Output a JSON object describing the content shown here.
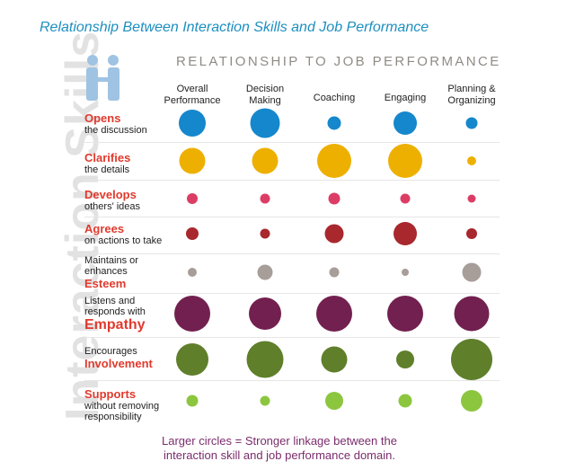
{
  "title": "Relationship Between Interaction Skills and Job Performance",
  "side_title": "Interaction Skills",
  "header": "RELATIONSHIP TO JOB PERFORMANCE",
  "caption": [
    "Larger circles = Stronger linkage between the",
    "interaction skill and job performance domain."
  ],
  "chart_data": {
    "type": "bubble-matrix",
    "columns": [
      [
        "Overall",
        "Performance"
      ],
      [
        "Decision",
        "Making"
      ],
      [
        "Coaching"
      ],
      [
        "Engaging"
      ],
      [
        "Planning &",
        "Organizing"
      ]
    ],
    "rows": [
      {
        "label": [
          {
            "t": "Opens",
            "s": "big"
          },
          {
            "t": "the discussion",
            "s": ""
          }
        ],
        "color": "#1587cc",
        "sizes": [
          3,
          3.3,
          1.5,
          2.6,
          1.3
        ]
      },
      {
        "label": [
          {
            "t": "Clarifies",
            "s": "big"
          },
          {
            "t": "the details",
            "s": ""
          }
        ],
        "color": "#edb000",
        "sizes": [
          2.9,
          2.9,
          3.8,
          3.8,
          1
        ]
      },
      {
        "label": [
          {
            "t": "Develops",
            "s": "big"
          },
          {
            "t": "others' ideas",
            "s": ""
          }
        ],
        "color": "#dc3d65",
        "sizes": [
          1.2,
          1.1,
          1.3,
          1.1,
          0.9
        ]
      },
      {
        "label": [
          {
            "t": "Agrees",
            "s": "big"
          },
          {
            "t": "on actions to take",
            "s": ""
          }
        ],
        "color": "#a8282d",
        "sizes": [
          1.4,
          1.1,
          2.1,
          2.6,
          1.2
        ]
      },
      {
        "label": [
          {
            "t": "Maintains or",
            "s": ""
          },
          {
            "t": "enhances",
            "s": ""
          },
          {
            "t": "Esteem",
            "s": "big"
          }
        ],
        "color": "#a79d99",
        "sizes": [
          1,
          1.7,
          1.1,
          0.8,
          2.1
        ]
      },
      {
        "label": [
          {
            "t": "Listens and",
            "s": ""
          },
          {
            "t": "responds with",
            "s": ""
          },
          {
            "t": "Empathy",
            "s": "xl"
          }
        ],
        "color": "#72204f",
        "sizes": [
          4,
          3.6,
          4,
          4,
          3.9
        ]
      },
      {
        "label": [
          {
            "t": "Encourages",
            "s": ""
          },
          {
            "t": "Involvement",
            "s": "big"
          }
        ],
        "color": "#5f7f2b",
        "sizes": [
          3.6,
          4.1,
          2.9,
          2,
          4.6
        ]
      },
      {
        "label": [
          {
            "t": "Supports",
            "s": "big"
          },
          {
            "t": "without removing",
            "s": ""
          },
          {
            "t": "responsibility",
            "s": ""
          }
        ],
        "color": "#8cc63f",
        "sizes": [
          1.3,
          1.1,
          2,
          1.5,
          2.4
        ]
      }
    ],
    "legend": "Larger circles = Stronger linkage"
  }
}
